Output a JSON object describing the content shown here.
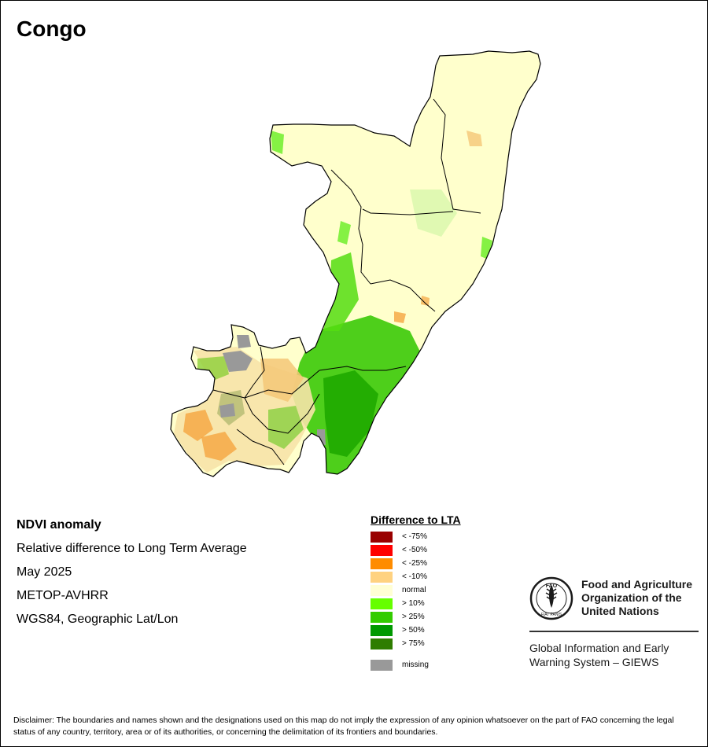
{
  "map": {
    "title": "Congo",
    "info_lines": [
      "NDVI anomaly",
      "Relative difference to Long Term Average",
      "May 2025",
      "METOP-AVHRR",
      "WGS84, Geographic Lat/Lon"
    ]
  },
  "legend": {
    "title": "Difference to LTA",
    "items": [
      {
        "label": "< -75%",
        "color": "#990000"
      },
      {
        "label": "< -50%",
        "color": "#ff0000"
      },
      {
        "label": "< -25%",
        "color": "#ff8c00"
      },
      {
        "label": "< -10%",
        "color": "#ffd280"
      },
      {
        "label": "normal",
        "color": "#ffffd4"
      },
      {
        "label": "> 10%",
        "color": "#66ff00"
      },
      {
        "label": "> 25%",
        "color": "#33cc00"
      },
      {
        "label": "> 50%",
        "color": "#009900"
      },
      {
        "label": "> 75%",
        "color": "#2e7d00"
      }
    ],
    "missing": {
      "label": "missing",
      "color": "#999999"
    }
  },
  "logo": {
    "org_name": "Food and Agriculture Organization of the United Nations",
    "logo_letters": "FAO",
    "logo_motto": "FIAT PANIS",
    "system_name": "Global Information and Early Warning System – GIEWS"
  },
  "disclaimer": "Disclaimer: The boundaries and names shown and the designations used on this map do not imply the expression of any opinion whatsoever on the part of FAO concerning the legal status of any country, territory, area or of its authorities, or concerning the delimitation of its frontiers and boundaries."
}
